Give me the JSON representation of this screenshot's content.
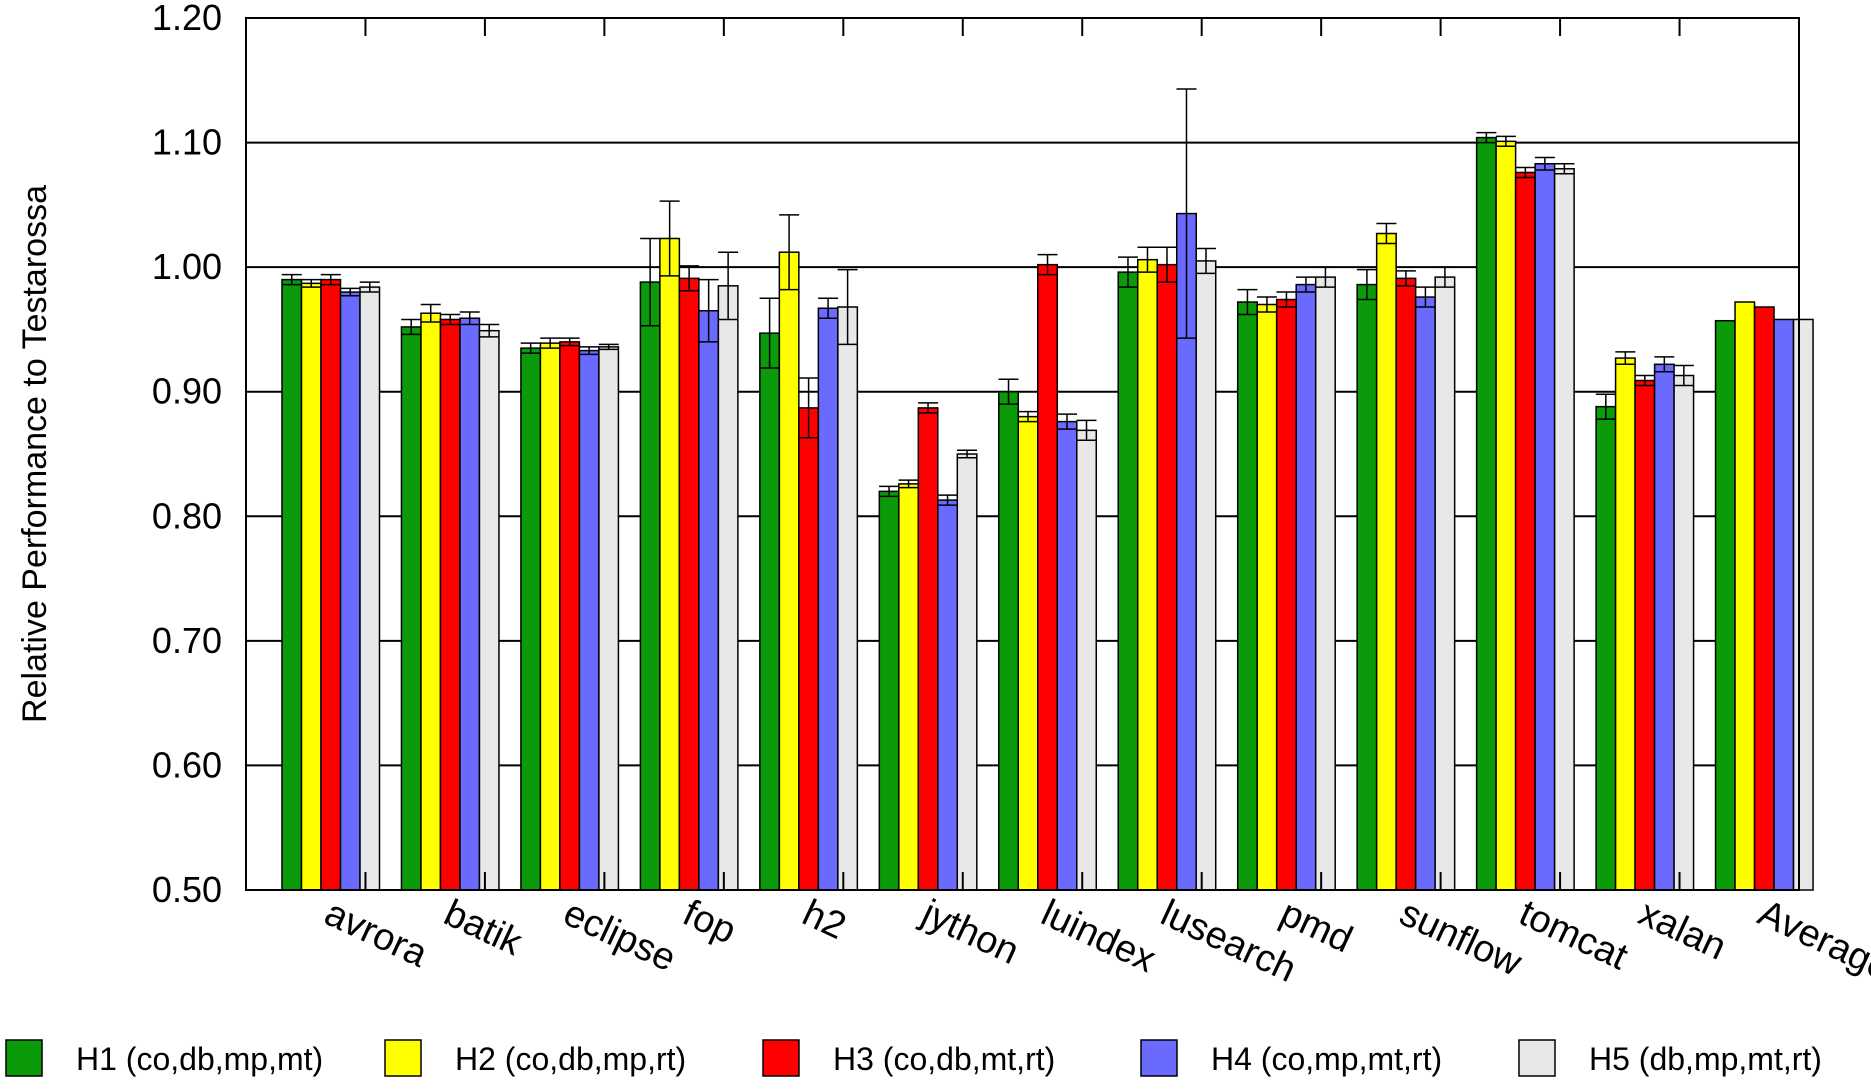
{
  "chart_data": {
    "type": "bar",
    "ylabel": "Relative Performance to Testarossa",
    "xlabel": "",
    "ylim": [
      0.5,
      1.2
    ],
    "yticks": [
      "0.50",
      "0.60",
      "0.70",
      "0.80",
      "0.90",
      "1.00",
      "1.10",
      "1.20"
    ],
    "grid": "horizontal",
    "legend_position": "bottom",
    "error_bars": true,
    "categories": [
      "avrora",
      "batik",
      "eclipse",
      "fop",
      "h2",
      "jython",
      "luindex",
      "lusearch",
      "pmd",
      "sunflow",
      "tomcat",
      "xalan",
      "Average"
    ],
    "series": [
      {
        "name": "H1 (co,db,mp,mt)",
        "color": "#0a9a0a",
        "values": [
          0.99,
          0.952,
          0.935,
          0.988,
          0.947,
          0.82,
          0.9,
          0.996,
          0.972,
          0.986,
          1.104,
          0.888,
          0.957
        ],
        "errors": [
          0.004,
          0.006,
          0.004,
          0.035,
          0.028,
          0.004,
          0.01,
          0.012,
          0.01,
          0.012,
          0.004,
          0.01,
          0
        ]
      },
      {
        "name": "H2 (co,db,mp,rt)",
        "color": "#ffff00",
        "values": [
          0.987,
          0.963,
          0.939,
          1.023,
          1.012,
          0.826,
          0.88,
          1.006,
          0.97,
          1.027,
          1.101,
          0.927,
          0.972
        ],
        "errors": [
          0.003,
          0.007,
          0.004,
          0.03,
          0.03,
          0.003,
          0.004,
          0.01,
          0.006,
          0.008,
          0.004,
          0.005,
          0
        ]
      },
      {
        "name": "H3 (co,db,mt,rt)",
        "color": "#ff0000",
        "values": [
          0.99,
          0.958,
          0.94,
          0.991,
          0.887,
          0.887,
          1.002,
          1.002,
          0.974,
          0.991,
          1.076,
          0.909,
          0.968
        ],
        "errors": [
          0.004,
          0.004,
          0.003,
          0.01,
          0.024,
          0.004,
          0.008,
          0.014,
          0.006,
          0.006,
          0.004,
          0.004,
          0
        ]
      },
      {
        "name": "H4 (co,mp,mt,rt)",
        "color": "#6a6aff",
        "values": [
          0.98,
          0.959,
          0.933,
          0.965,
          0.967,
          0.813,
          0.876,
          1.043,
          0.986,
          0.976,
          1.083,
          0.922,
          0.958
        ],
        "errors": [
          0.003,
          0.005,
          0.003,
          0.025,
          0.008,
          0.004,
          0.006,
          0.1,
          0.006,
          0.008,
          0.005,
          0.006,
          0
        ]
      },
      {
        "name": "H5 (db,mp,mt,rt)",
        "color": "#e8e8e8",
        "values": [
          0.984,
          0.949,
          0.936,
          0.985,
          0.968,
          0.85,
          0.869,
          1.005,
          0.992,
          0.992,
          1.079,
          0.913,
          0.958
        ],
        "errors": [
          0.004,
          0.005,
          0.002,
          0.027,
          0.03,
          0.003,
          0.008,
          0.01,
          0.008,
          0.008,
          0.004,
          0.008,
          0
        ]
      }
    ]
  }
}
